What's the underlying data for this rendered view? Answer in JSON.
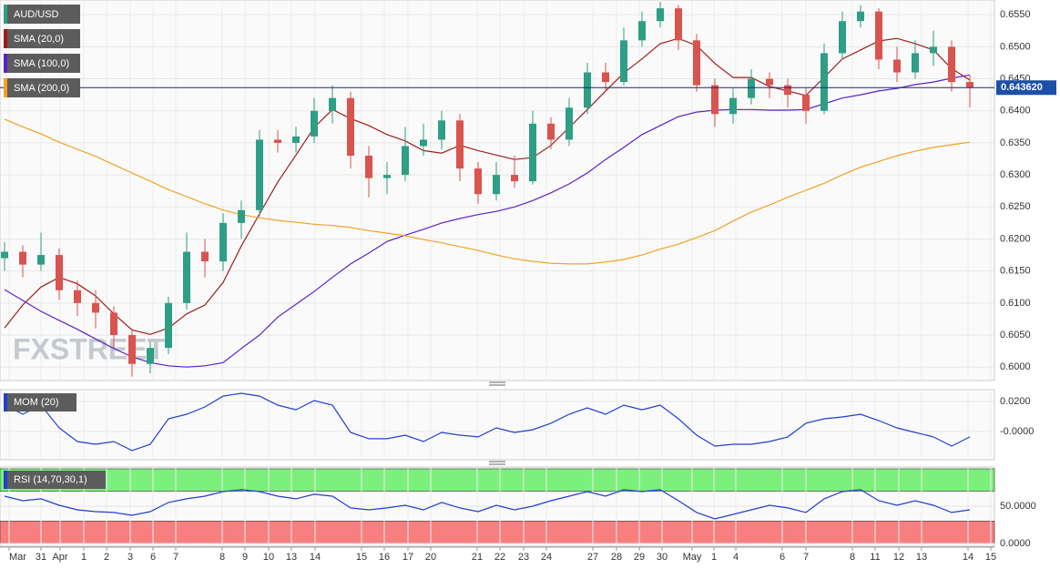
{
  "chart_data": [
    {
      "type": "candlestick",
      "name": "AUD/USD",
      "up_color": "#2e9e84",
      "down_color": "#d9534f",
      "watermark": "FXSTREET",
      "open": [
        0.617,
        0.618,
        0.616,
        0.6175,
        0.612,
        0.61,
        0.6085,
        0.605,
        0.6005,
        0.603,
        0.61,
        0.618,
        0.6165,
        0.6225,
        0.6245,
        0.6355,
        0.635,
        0.636,
        0.64,
        0.642,
        0.633,
        0.6295,
        0.63,
        0.6345,
        0.6355,
        0.6385,
        0.631,
        0.627,
        0.63,
        0.629,
        0.638,
        0.6355,
        0.6405,
        0.646,
        0.6445,
        0.651,
        0.654,
        0.656,
        0.651,
        0.644,
        0.6395,
        0.642,
        0.645,
        0.644,
        0.6425,
        0.64,
        0.649,
        0.654,
        0.6555,
        0.648,
        0.646,
        0.649,
        0.65,
        0.6445
      ],
      "high": [
        0.6195,
        0.619,
        0.621,
        0.6185,
        0.6135,
        0.612,
        0.6095,
        0.606,
        0.604,
        0.611,
        0.621,
        0.62,
        0.624,
        0.626,
        0.637,
        0.637,
        0.6375,
        0.642,
        0.644,
        0.643,
        0.6345,
        0.632,
        0.6375,
        0.638,
        0.64,
        0.6395,
        0.632,
        0.632,
        0.633,
        0.64,
        0.639,
        0.642,
        0.6475,
        0.6475,
        0.653,
        0.6555,
        0.657,
        0.6565,
        0.652,
        0.645,
        0.6435,
        0.6465,
        0.646,
        0.645,
        0.6435,
        0.6505,
        0.6555,
        0.6565,
        0.656,
        0.65,
        0.651,
        0.6525,
        0.651,
        0.6455
      ],
      "low": [
        0.615,
        0.614,
        0.615,
        0.6105,
        0.608,
        0.606,
        0.603,
        0.5985,
        0.599,
        0.602,
        0.609,
        0.614,
        0.615,
        0.62,
        0.6235,
        0.6335,
        0.6335,
        0.635,
        0.638,
        0.631,
        0.6265,
        0.627,
        0.629,
        0.633,
        0.634,
        0.629,
        0.6255,
        0.626,
        0.628,
        0.6285,
        0.634,
        0.6345,
        0.6395,
        0.643,
        0.644,
        0.65,
        0.653,
        0.6495,
        0.643,
        0.6375,
        0.638,
        0.641,
        0.642,
        0.6405,
        0.638,
        0.6395,
        0.648,
        0.653,
        0.6465,
        0.6445,
        0.645,
        0.647,
        0.643,
        0.6405
      ],
      "close": [
        0.618,
        0.616,
        0.6175,
        0.612,
        0.61,
        0.6085,
        0.605,
        0.6005,
        0.603,
        0.61,
        0.618,
        0.6165,
        0.6225,
        0.6245,
        0.6355,
        0.635,
        0.636,
        0.64,
        0.642,
        0.633,
        0.6295,
        0.63,
        0.6345,
        0.6355,
        0.6385,
        0.631,
        0.627,
        0.63,
        0.629,
        0.638,
        0.6355,
        0.6405,
        0.646,
        0.6445,
        0.651,
        0.654,
        0.656,
        0.651,
        0.644,
        0.6395,
        0.642,
        0.645,
        0.644,
        0.6425,
        0.64,
        0.649,
        0.654,
        0.6555,
        0.648,
        0.646,
        0.649,
        0.65,
        0.6445,
        0.6436
      ],
      "series": [
        {
          "name": "SMA (20,0)",
          "color": "#a01c1c",
          "values": [
            0.6061,
            0.6097,
            0.6125,
            0.614,
            0.613,
            0.6111,
            0.6083,
            0.6058,
            0.6051,
            0.6061,
            0.6083,
            0.6097,
            0.6132,
            0.6189,
            0.6239,
            0.6289,
            0.6331,
            0.6374,
            0.6402,
            0.6388,
            0.6377,
            0.6363,
            0.6353,
            0.6338,
            0.6334,
            0.6346,
            0.6338,
            0.6331,
            0.6324,
            0.6327,
            0.6346,
            0.6374,
            0.6402,
            0.6431,
            0.6459,
            0.6481,
            0.6505,
            0.6513,
            0.6502,
            0.6474,
            0.6452,
            0.6452,
            0.6438,
            0.6431,
            0.6424,
            0.6452,
            0.6481,
            0.6495,
            0.6509,
            0.6513,
            0.6505,
            0.6495,
            0.6466,
            0.6448
          ]
        },
        {
          "name": "SMA (100,0)",
          "color": "#5a22c8",
          "values": [
            0.6121,
            0.6104,
            0.6087,
            0.6073,
            0.6059,
            0.6044,
            0.6029,
            0.6016,
            0.6007,
            0.6002,
            0.6,
            0.6002,
            0.6007,
            0.6029,
            0.605,
            0.6078,
            0.6098,
            0.6118,
            0.614,
            0.6161,
            0.6178,
            0.6196,
            0.6206,
            0.6215,
            0.6225,
            0.6232,
            0.6238,
            0.6243,
            0.625,
            0.626,
            0.6272,
            0.6286,
            0.6303,
            0.6324,
            0.6343,
            0.6363,
            0.6377,
            0.6391,
            0.6398,
            0.6401,
            0.6402,
            0.6402,
            0.6401,
            0.6401,
            0.6402,
            0.6411,
            0.642,
            0.6425,
            0.6431,
            0.6435,
            0.6441,
            0.6445,
            0.6451,
            0.6456
          ]
        },
        {
          "name": "SMA (200,0)",
          "color": "#f5a023",
          "values": [
            0.6387,
            0.6375,
            0.6364,
            0.6351,
            0.634,
            0.6329,
            0.6316,
            0.6303,
            0.629,
            0.6277,
            0.6266,
            0.6255,
            0.6245,
            0.6238,
            0.6233,
            0.6229,
            0.6226,
            0.6223,
            0.6221,
            0.6218,
            0.6213,
            0.6209,
            0.6205,
            0.6199,
            0.6194,
            0.6188,
            0.6182,
            0.6175,
            0.6169,
            0.6165,
            0.6162,
            0.6161,
            0.6161,
            0.6164,
            0.6168,
            0.6175,
            0.6184,
            0.6192,
            0.6202,
            0.6213,
            0.6228,
            0.6242,
            0.6253,
            0.6265,
            0.6276,
            0.6287,
            0.63,
            0.6312,
            0.6321,
            0.633,
            0.6337,
            0.6343,
            0.6347,
            0.6351
          ]
        }
      ],
      "last_price": {
        "value": 0.64362,
        "label": "0.643620"
      },
      "ylim": [
        0.5979,
        0.6573
      ],
      "yticks": [
        {
          "value": 0.6,
          "label": "0.6000"
        },
        {
          "value": 0.605,
          "label": "0.6050"
        },
        {
          "value": 0.61,
          "label": "0.6100"
        },
        {
          "value": 0.615,
          "label": "0.6150"
        },
        {
          "value": 0.62,
          "label": "0.6200"
        },
        {
          "value": 0.625,
          "label": "0.6250"
        },
        {
          "value": 0.63,
          "label": "0.6300"
        },
        {
          "value": 0.635,
          "label": "0.6350"
        },
        {
          "value": 0.64,
          "label": "0.6400"
        },
        {
          "value": 0.645,
          "label": "0.6450"
        },
        {
          "value": 0.65,
          "label": "0.6500"
        },
        {
          "value": 0.655,
          "label": "0.6550"
        }
      ],
      "grid": true
    },
    {
      "type": "line",
      "series": [
        {
          "name": "MOM (20)",
          "color": "#1f3fd0",
          "values": [
            0.0176,
            0.0115,
            0.0176,
            0.0024,
            -0.0067,
            -0.0085,
            -0.0067,
            -0.0127,
            -0.0085,
            0.0085,
            0.0115,
            0.0164,
            0.0236,
            0.0255,
            0.0236,
            0.0176,
            0.0145,
            0.0206,
            0.0176,
            -0.0006,
            -0.0048,
            -0.0048,
            -0.0024,
            -0.0067,
            -0.0006,
            -0.0024,
            -0.0036,
            0.0024,
            -0.0006,
            0.0012,
            0.0055,
            0.0115,
            0.0158,
            0.0115,
            0.0176,
            0.0145,
            0.0176,
            0.0085,
            -0.0024,
            -0.0097,
            -0.0085,
            -0.0085,
            -0.0067,
            -0.0036,
            0.0055,
            0.0085,
            0.0097,
            0.0115,
            0.0073,
            0.0024,
            -0.0006,
            -0.0036,
            -0.0097,
            -0.0036
          ]
        }
      ],
      "ylim": [
        -0.0188,
        0.0279
      ],
      "yticks": [
        {
          "value": 0,
          "label": "-0.0000"
        },
        {
          "value": 0.02,
          "label": "0.0200"
        }
      ],
      "grid": true
    },
    {
      "type": "line",
      "series": [
        {
          "name": "RSI (14,70,30,1)",
          "color": "#1f3fd0",
          "values": [
            63.4,
            57.3,
            59.8,
            51.2,
            45.1,
            42.7,
            41.5,
            37.8,
            42.7,
            54.9,
            59.8,
            63.4,
            69.5,
            72.0,
            69.5,
            63.4,
            59.8,
            65.9,
            63.4,
            47.6,
            45.1,
            47.6,
            51.2,
            45.1,
            54.9,
            47.6,
            42.7,
            51.2,
            45.1,
            50.0,
            57.3,
            63.4,
            69.5,
            63.4,
            72.0,
            69.5,
            72.0,
            57.3,
            41.5,
            32.9,
            39.0,
            45.1,
            51.2,
            47.6,
            41.5,
            59.8,
            69.5,
            72.0,
            57.3,
            51.2,
            57.3,
            51.2,
            41.5,
            45.1
          ]
        }
      ],
      "range": [
        0,
        100
      ],
      "overbought": 70,
      "oversold": 30,
      "overbought_color": "#7cf07c",
      "oversold_color": "#f77f7f",
      "ylim": [
        -3.7,
        102.4
      ],
      "yticks": [
        {
          "value": 0,
          "label": "0.0000"
        },
        {
          "value": 50,
          "label": "50.0000"
        }
      ],
      "grid": true,
      "x_labels": [
        "Mar",
        "31",
        "Apr",
        "1",
        "2",
        "3",
        "6",
        "7",
        "8",
        "9",
        "10",
        "13",
        "14",
        "15",
        "16",
        "17",
        "20",
        "21",
        "22",
        "23",
        "24",
        "27",
        "28",
        "29",
        "30",
        "May",
        "1",
        "4",
        "6",
        "7",
        "8",
        "11",
        "12",
        "13",
        "14",
        "15"
      ]
    }
  ]
}
